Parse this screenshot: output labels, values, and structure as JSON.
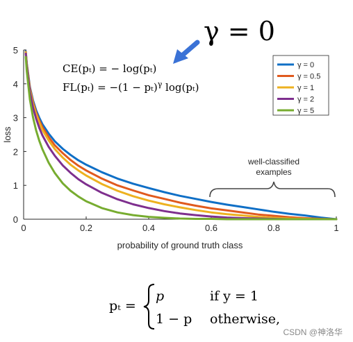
{
  "annotation": {
    "gamma_zero": "γ = 0",
    "arrow_color": "#3a72d6",
    "ce_formula": "CE(pₜ) = − log(pₜ)",
    "fl_formula_main": "FL(pₜ) = −(1 − pₜ)",
    "fl_formula_exp": "γ",
    "fl_formula_tail": " log(pₜ)",
    "well_classified_line1": "well-classified",
    "well_classified_line2": "examples"
  },
  "chart_data": {
    "type": "line",
    "title": "",
    "xlabel": "probability of ground truth class",
    "ylabel": "loss",
    "xlim": [
      0,
      1
    ],
    "ylim": [
      0,
      5
    ],
    "xticks": [
      0,
      0.2,
      0.4,
      0.6,
      0.8,
      1
    ],
    "xtick_labels": [
      "0",
      "0.2",
      "0.4",
      "0.6",
      "0.8",
      "1"
    ],
    "yticks": [
      0,
      1,
      2,
      3,
      4,
      5
    ],
    "ytick_labels": [
      "0",
      "1",
      "2",
      "3",
      "4",
      "5"
    ],
    "grid": false,
    "legend_position": "top-right",
    "x": [
      0.007,
      0.01,
      0.02,
      0.03,
      0.04,
      0.05,
      0.06,
      0.08,
      0.1,
      0.125,
      0.15,
      0.175,
      0.2,
      0.25,
      0.3,
      0.35,
      0.4,
      0.45,
      0.5,
      0.55,
      0.6,
      0.65,
      0.7,
      0.75,
      0.8,
      0.85,
      0.9,
      0.95,
      1.0
    ],
    "series": [
      {
        "name": "γ = 0",
        "color": "#0f6fc6",
        "values": [
          4.96,
          4.61,
          3.91,
          3.51,
          3.22,
          3.0,
          2.81,
          2.53,
          2.3,
          2.08,
          1.9,
          1.74,
          1.61,
          1.39,
          1.2,
          1.05,
          0.92,
          0.8,
          0.69,
          0.6,
          0.51,
          0.43,
          0.36,
          0.29,
          0.22,
          0.16,
          0.11,
          0.05,
          0.0
        ]
      },
      {
        "name": "γ = 0.5",
        "color": "#e05a1e",
        "values": [
          4.94,
          4.58,
          3.87,
          3.46,
          3.15,
          2.92,
          2.72,
          2.43,
          2.18,
          1.95,
          1.75,
          1.58,
          1.44,
          1.2,
          1.0,
          0.85,
          0.71,
          0.6,
          0.49,
          0.4,
          0.32,
          0.26,
          0.2,
          0.14,
          0.1,
          0.06,
          0.03,
          0.01,
          0.0
        ]
      },
      {
        "name": "γ = 1",
        "color": "#edb120",
        "values": [
          4.93,
          4.56,
          3.83,
          3.4,
          3.09,
          2.85,
          2.64,
          2.33,
          2.07,
          1.82,
          1.61,
          1.44,
          1.29,
          1.04,
          0.84,
          0.68,
          0.55,
          0.44,
          0.35,
          0.27,
          0.2,
          0.15,
          0.11,
          0.07,
          0.04,
          0.02,
          0.01,
          0.0,
          0.0
        ]
      },
      {
        "name": "γ = 2",
        "color": "#7e2f8e",
        "values": [
          4.89,
          4.52,
          3.76,
          3.3,
          2.97,
          2.7,
          2.48,
          2.14,
          1.87,
          1.59,
          1.37,
          1.18,
          1.03,
          0.78,
          0.59,
          0.44,
          0.33,
          0.24,
          0.17,
          0.12,
          0.08,
          0.05,
          0.03,
          0.02,
          0.01,
          0.0,
          0.0,
          0.0,
          0.0
        ]
      },
      {
        "name": "γ = 5",
        "color": "#77ac30",
        "values": [
          4.79,
          4.38,
          3.54,
          3.01,
          2.62,
          2.32,
          2.07,
          1.67,
          1.36,
          1.06,
          0.84,
          0.67,
          0.53,
          0.33,
          0.2,
          0.12,
          0.07,
          0.04,
          0.02,
          0.01,
          0.01,
          0.0,
          0.0,
          0.0,
          0.0,
          0.0,
          0.0,
          0.0,
          0.0
        ]
      }
    ]
  },
  "pt_definition": {
    "lhs": "pₜ =",
    "case1_value": "p",
    "case1_condition": "if y = 1",
    "case2_value": "1 − p",
    "case2_condition": "otherwise,"
  },
  "watermark": "CSDN @神洛华"
}
